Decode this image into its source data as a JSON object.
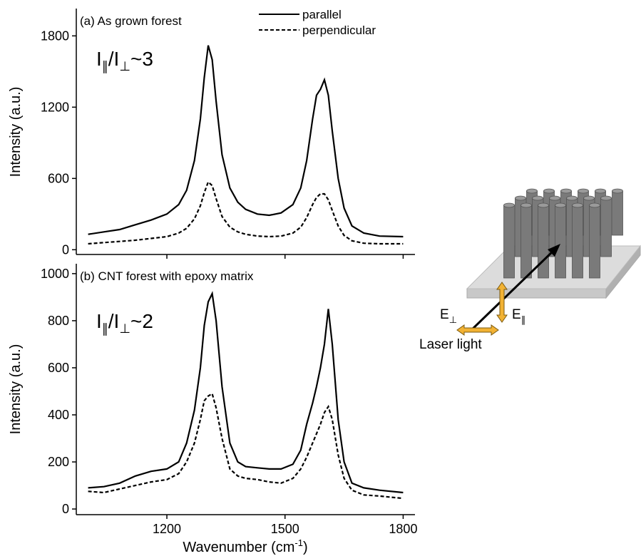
{
  "chart_data": [
    {
      "type": "line",
      "title": "(a) As grown forest",
      "y_label": "Intensity (a.u.)",
      "annotation": [
        "I",
        "∥",
        "/I",
        "⊥",
        "~3"
      ],
      "x": [
        1000,
        1040,
        1080,
        1120,
        1160,
        1200,
        1230,
        1250,
        1270,
        1285,
        1295,
        1305,
        1315,
        1325,
        1340,
        1360,
        1380,
        1400,
        1430,
        1460,
        1490,
        1520,
        1540,
        1555,
        1570,
        1580,
        1590,
        1600,
        1610,
        1620,
        1635,
        1650,
        1670,
        1700,
        1740,
        1800
      ],
      "series": [
        {
          "name": "parallel",
          "color": "#000000",
          "dash": false,
          "values": [
            130,
            150,
            170,
            210,
            250,
            300,
            380,
            500,
            750,
            1100,
            1450,
            1720,
            1600,
            1250,
            800,
            520,
            400,
            340,
            300,
            290,
            310,
            380,
            520,
            750,
            1100,
            1300,
            1350,
            1430,
            1300,
            1000,
            600,
            350,
            200,
            140,
            115,
            110
          ]
        },
        {
          "name": "perpendicular",
          "color": "#000000",
          "dash": true,
          "values": [
            50,
            60,
            70,
            80,
            95,
            110,
            140,
            180,
            260,
            370,
            480,
            570,
            540,
            430,
            280,
            190,
            150,
            130,
            115,
            110,
            115,
            140,
            190,
            270,
            380,
            440,
            470,
            470,
            420,
            330,
            200,
            120,
            75,
            55,
            50,
            50
          ]
        }
      ],
      "xlim": [
        970,
        1830
      ],
      "ylim": [
        -40,
        2030
      ],
      "yticks": [
        0,
        600,
        1200,
        1800
      ],
      "legend": "top-right"
    },
    {
      "type": "line",
      "title": "(b) CNT forest with epoxy matrix",
      "y_label": "Intensity (a.u.)",
      "x_label": [
        "Wavenumber (cm",
        "-1",
        ")"
      ],
      "annotation": [
        "I",
        "∥",
        "/I",
        "⊥",
        "~2"
      ],
      "x": [
        1000,
        1040,
        1080,
        1120,
        1160,
        1200,
        1230,
        1250,
        1270,
        1285,
        1295,
        1305,
        1315,
        1325,
        1340,
        1360,
        1380,
        1400,
        1430,
        1460,
        1490,
        1520,
        1540,
        1555,
        1570,
        1580,
        1590,
        1600,
        1610,
        1620,
        1635,
        1650,
        1670,
        1700,
        1740,
        1800
      ],
      "series": [
        {
          "color": "#000000",
          "dash": false,
          "values": [
            90,
            95,
            110,
            140,
            160,
            170,
            200,
            280,
            420,
            600,
            780,
            880,
            915,
            800,
            520,
            280,
            200,
            180,
            175,
            170,
            170,
            190,
            250,
            360,
            450,
            520,
            600,
            700,
            850,
            700,
            380,
            200,
            110,
            90,
            80,
            70
          ]
        },
        {
          "color": "#000000",
          "dash": true,
          "values": [
            75,
            70,
            85,
            100,
            115,
            125,
            150,
            200,
            280,
            380,
            460,
            480,
            490,
            430,
            300,
            170,
            140,
            130,
            125,
            115,
            110,
            130,
            170,
            220,
            280,
            320,
            360,
            410,
            435,
            380,
            230,
            130,
            80,
            60,
            55,
            45
          ]
        }
      ],
      "xlim": [
        970,
        1830
      ],
      "xticks": [
        1200,
        1500,
        1800
      ],
      "ylim": [
        -24,
        1042
      ],
      "yticks": [
        0,
        200,
        400,
        600,
        800,
        1000
      ]
    }
  ],
  "diagram": {
    "e_perp": [
      "E",
      "⊥"
    ],
    "e_par": [
      "E",
      "∥"
    ],
    "laser": "Laser light"
  }
}
